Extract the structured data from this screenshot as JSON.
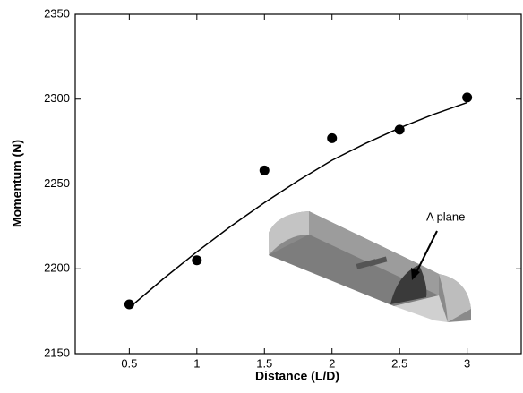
{
  "chart_data": {
    "type": "scatter",
    "x_label": "Distance (L/D)",
    "y_label": "Momentum (N)",
    "x": [
      0.5,
      1,
      1.5,
      2,
      2.5,
      3
    ],
    "values": [
      2179,
      2205,
      2258,
      2277,
      2282,
      2301
    ],
    "color": "#000000",
    "fit": {
      "x": [
        0.5,
        0.75,
        1,
        1.25,
        1.5,
        1.75,
        2,
        2.25,
        2.5,
        2.75,
        3
      ],
      "values": [
        2177,
        2194,
        2210,
        2225,
        2239,
        2252,
        2264,
        2274,
        2283,
        2291,
        2298
      ],
      "color": "#000000"
    },
    "xlim": [
      0.1,
      3.4
    ],
    "xticks": [
      0.5,
      1,
      1.5,
      2,
      2.5,
      3
    ],
    "ylim": [
      2150,
      2350
    ],
    "yticks": [
      2150,
      2200,
      2250,
      2300,
      2350
    ],
    "annotation": "A plane"
  }
}
